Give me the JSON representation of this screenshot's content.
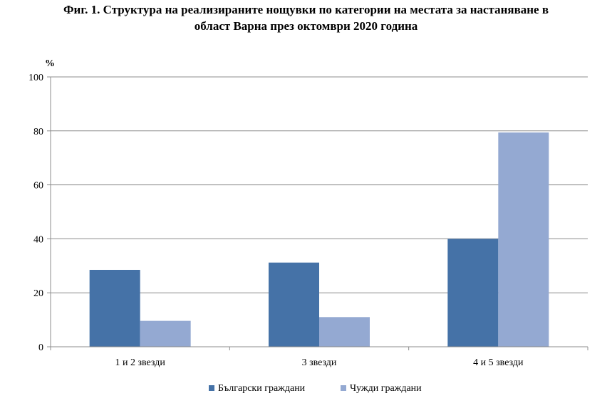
{
  "chart_data": {
    "type": "bar",
    "title_lines": [
      "Фиг. 1. Структура на реализираните нощувки по категории на местата за настаняване в",
      "област Варна през октомври 2020 година"
    ],
    "ylabel": "%",
    "xlabel": "",
    "ylim": [
      0,
      100
    ],
    "yticks": [
      0,
      20,
      40,
      60,
      80,
      100
    ],
    "grid": true,
    "legend_position": "bottom",
    "categories": [
      "1 и 2 звезди",
      "3 звезди",
      "4 и 5 звезди"
    ],
    "series": [
      {
        "name": "Български граждани",
        "color": "#4572A7",
        "values": [
          28.5,
          31.2,
          40.0
        ]
      },
      {
        "name": "Чужди граждани",
        "color": "#94A9D2",
        "values": [
          9.6,
          11.0,
          79.4
        ]
      }
    ]
  }
}
